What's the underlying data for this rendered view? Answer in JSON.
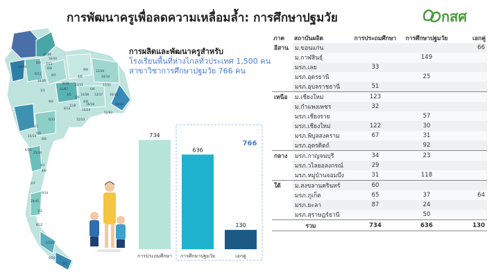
{
  "title": "การพัฒนาครูเพื่อลดความเหลื่อมล้ำ: การศึกษาปฐมวัย",
  "logo": {
    "text": "กสศ",
    "icon": "leaf-logo-icon",
    "color": "#4a9a3c"
  },
  "headline": {
    "line1": "การผลิตและพัฒนาครูสำหรับ",
    "line2": "โรงเรียนพื้นที่ห่างไกลทั่วประเทศ 1,500 คน",
    "line3": "สาขาวิชาการศึกษาปฐมวัย 766 คน"
  },
  "chart_data": {
    "type": "bar",
    "categories": [
      "การประถมศึกษา",
      "การศึกษาปฐมวัย",
      "เอกคู่"
    ],
    "values": [
      734,
      636,
      130
    ],
    "colors": [
      "#b7e5d8",
      "#1fb2cf",
      "#1c5a86"
    ],
    "bracket_total": 766,
    "bracket_color": "#4a7bd0",
    "ylim": [
      0,
      800
    ]
  },
  "table": {
    "headers": [
      "ภาค",
      "สถาบันผลิต",
      "การประถมศึกษา",
      "การศึกษาปฐมวัย",
      "เอกคู่"
    ],
    "groups": [
      {
        "region": "อีสาน",
        "rows": [
          {
            "name": "ม.ขอนแก่น",
            "v": [
              "",
              "",
              "66"
            ]
          },
          {
            "name": "ม.กาฬสินธุ์",
            "v": [
              "",
              "149",
              ""
            ]
          },
          {
            "name": "มรภ.เลย",
            "v": [
              "33",
              "",
              ""
            ]
          },
          {
            "name": "มรภ.อุดรธานี",
            "v": [
              "",
              "25",
              ""
            ]
          },
          {
            "name": "มรภ.อุบลราชธานี",
            "v": [
              "51",
              "",
              ""
            ]
          }
        ]
      },
      {
        "region": "เหนือ",
        "rows": [
          {
            "name": "ม.เชียงใหม่",
            "v": [
              "123",
              "",
              ""
            ]
          },
          {
            "name": "ม.กำแพงเพชร",
            "v": [
              "32",
              "",
              ""
            ]
          },
          {
            "name": "มรภ.เชียงราย",
            "v": [
              "",
              "57",
              ""
            ]
          },
          {
            "name": "มรภ.เชียงใหม่",
            "v": [
              "122",
              "30",
              ""
            ]
          },
          {
            "name": "มรภ.พิบูลสงคราม",
            "v": [
              "67",
              "31",
              ""
            ]
          },
          {
            "name": "มรภ.อุตรดิตถ์",
            "v": [
              "",
              "92",
              ""
            ]
          }
        ]
      },
      {
        "region": "กลาง",
        "rows": [
          {
            "name": "มรภ.กาญจนบุรี",
            "v": [
              "34",
              "23",
              ""
            ]
          },
          {
            "name": "มรภ.วไลยอลงกรณ์",
            "v": [
              "29",
              "",
              ""
            ]
          },
          {
            "name": "มรภ.หมู่บ้านจอมบึง",
            "v": [
              "31",
              "118",
              ""
            ]
          }
        ]
      },
      {
        "region": "ใต้",
        "rows": [
          {
            "name": "ม.สงขลานครินทร์",
            "v": [
              "60",
              "",
              ""
            ]
          },
          {
            "name": "มรภ.ภูเก็ต",
            "v": [
              "65",
              "37",
              "64"
            ]
          },
          {
            "name": "มรภ.ยะลา",
            "v": [
              "87",
              "24",
              ""
            ]
          },
          {
            "name": "มรภ.สุราษฎร์ธานี",
            "v": [
              "",
              "50",
              ""
            ]
          }
        ]
      }
    ],
    "total": {
      "label": "รวม",
      "v": [
        "734",
        "636",
        "130"
      ]
    }
  },
  "map": {
    "labels": [
      "42/66",
      "16/34",
      "8/9",
      "7/12",
      "19/39",
      "6/8",
      "6/11",
      "9/5",
      "10/26",
      "31/67",
      "1/1",
      "8/16",
      "23/31",
      "14/38",
      "13/34",
      "9/8",
      "4/6",
      "17/21",
      "19/30",
      "5/6",
      "4/8",
      "16/13",
      "12/17",
      "6/6",
      "10/14",
      "52/93",
      "16/18",
      "12/24",
      "11/8",
      "8/12",
      "15/13",
      "6/13",
      "9/9",
      "3/5",
      "1/1",
      "5/9",
      "15/14",
      "8/8",
      "6/13",
      "4/1",
      "25/34",
      "4/8",
      "2/2",
      "9/14",
      "29/45",
      "1/2",
      "8/12",
      "17/21",
      "6/24",
      "5/5"
    ]
  }
}
